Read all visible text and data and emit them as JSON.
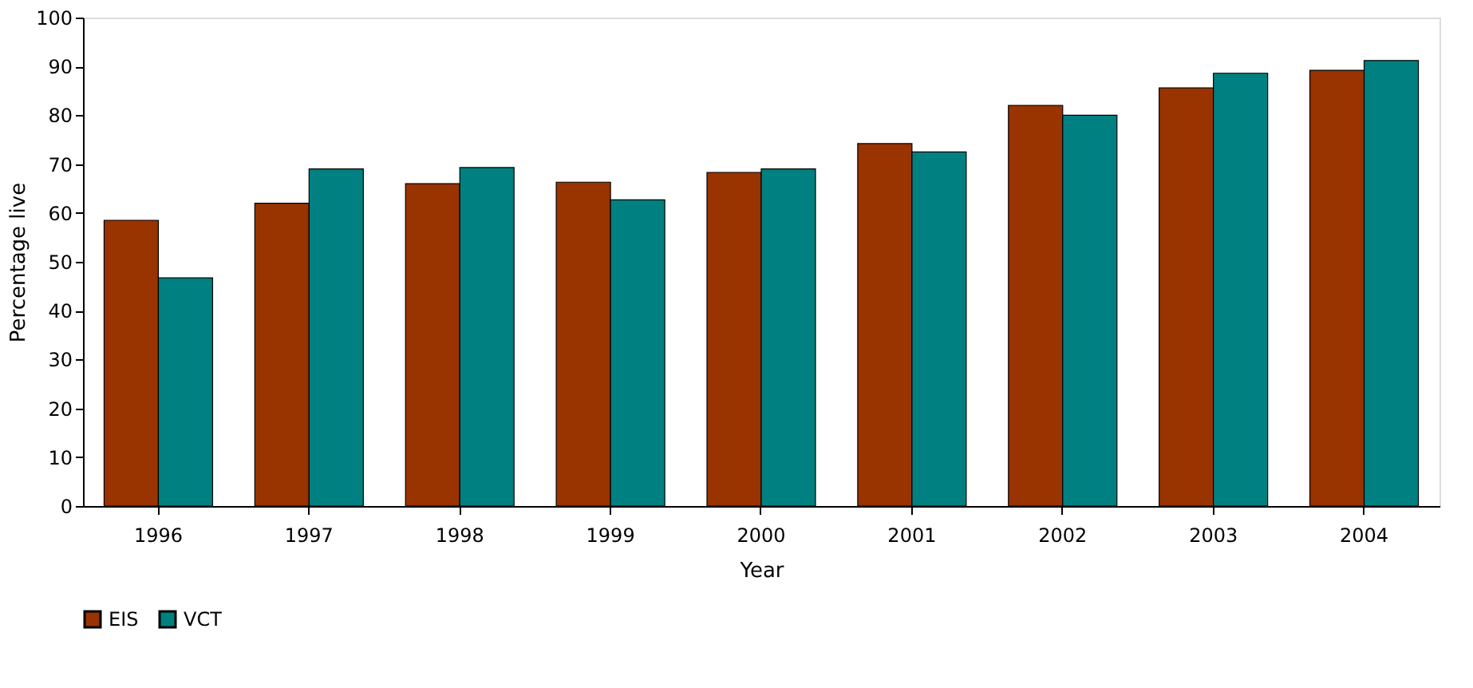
{
  "chart_data": {
    "type": "bar",
    "xlabel": "Year",
    "ylabel": "Percentage live",
    "categories": [
      "1996",
      "1997",
      "1998",
      "1999",
      "2000",
      "2001",
      "2002",
      "2003",
      "2004"
    ],
    "series": [
      {
        "name": "EIS",
        "color": "#993300",
        "values": [
          58.5,
          62,
          66,
          66.3,
          68.3,
          74.2,
          82,
          85.6,
          89.2
        ]
      },
      {
        "name": "VCT",
        "color": "#008080",
        "values": [
          46.7,
          69,
          69.3,
          62.7,
          69,
          72.5,
          80,
          88.6,
          91.2
        ]
      }
    ],
    "ylim": [
      0,
      100
    ],
    "yticks": [
      0,
      10,
      20,
      30,
      40,
      50,
      60,
      70,
      80,
      90,
      100
    ],
    "grid": false,
    "legend": "bottom"
  }
}
